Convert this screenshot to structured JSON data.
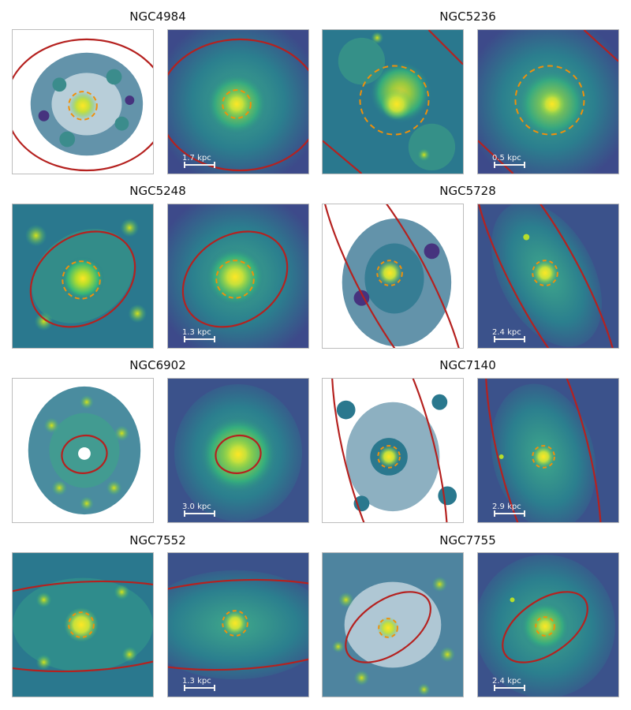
{
  "galaxies": [
    {
      "name": "NGC4984",
      "scale": "1.7 kpc"
    },
    {
      "name": "NGC5236",
      "scale": "0.5 kpc"
    },
    {
      "name": "NGC5248",
      "scale": "1.3 kpc"
    },
    {
      "name": "NGC5728",
      "scale": "2.4 kpc"
    },
    {
      "name": "NGC6902",
      "scale": "3.0 kpc"
    },
    {
      "name": "NGC7140",
      "scale": "2.9 kpc"
    },
    {
      "name": "NGC7552",
      "scale": "1.3 kpc"
    },
    {
      "name": "NGC7755",
      "scale": "2.4 kpc"
    }
  ],
  "colors": {
    "outer_ellipse": "#b5211f",
    "inner_circle": "#f0900a",
    "scalebar": "#f4f4f4"
  }
}
